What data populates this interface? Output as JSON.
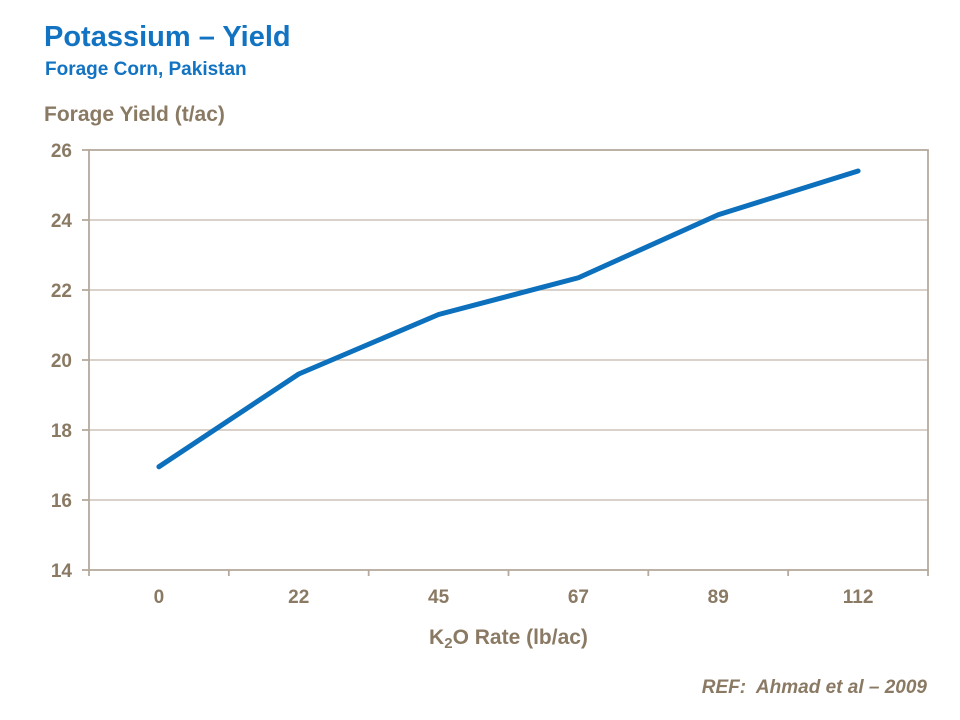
{
  "header": {
    "title": "Potassium – Yield",
    "subtitle": "Forage Corn, Pakistan",
    "title_color": "#1273C2"
  },
  "axes": {
    "y_title": "Forage Yield (t/ac)",
    "x_title_prefix": "K",
    "x_title_sub": "2",
    "x_title_suffix": "O Rate (lb/ac)"
  },
  "footer": {
    "ref": "REF:  Ahmad et al – 2009"
  },
  "colors": {
    "accent_blue": "#1273C2",
    "line_blue": "#0C70BC",
    "taupe_text": "#8A7A64",
    "gridline": "#C3B8AB",
    "border": "#B4A99C",
    "background": "#FFFFFF"
  },
  "chart_data": {
    "type": "line",
    "title": "Potassium – Yield",
    "subtitle": "Forage Corn, Pakistan",
    "xlabel": "K2O Rate (lb/ac)",
    "ylabel": "Forage Yield (t/ac)",
    "categories": [
      "0",
      "22",
      "45",
      "67",
      "89",
      "112"
    ],
    "values": [
      16.95,
      19.6,
      21.3,
      22.35,
      24.15,
      25.4
    ],
    "series_name": "Forage Yield (t/ac)",
    "ylim": [
      14,
      26
    ],
    "yticks": [
      14,
      16,
      18,
      20,
      22,
      24,
      26
    ],
    "grid": "horizontal",
    "legend": "none",
    "line_color": "#0C70BC",
    "line_width": 5
  }
}
